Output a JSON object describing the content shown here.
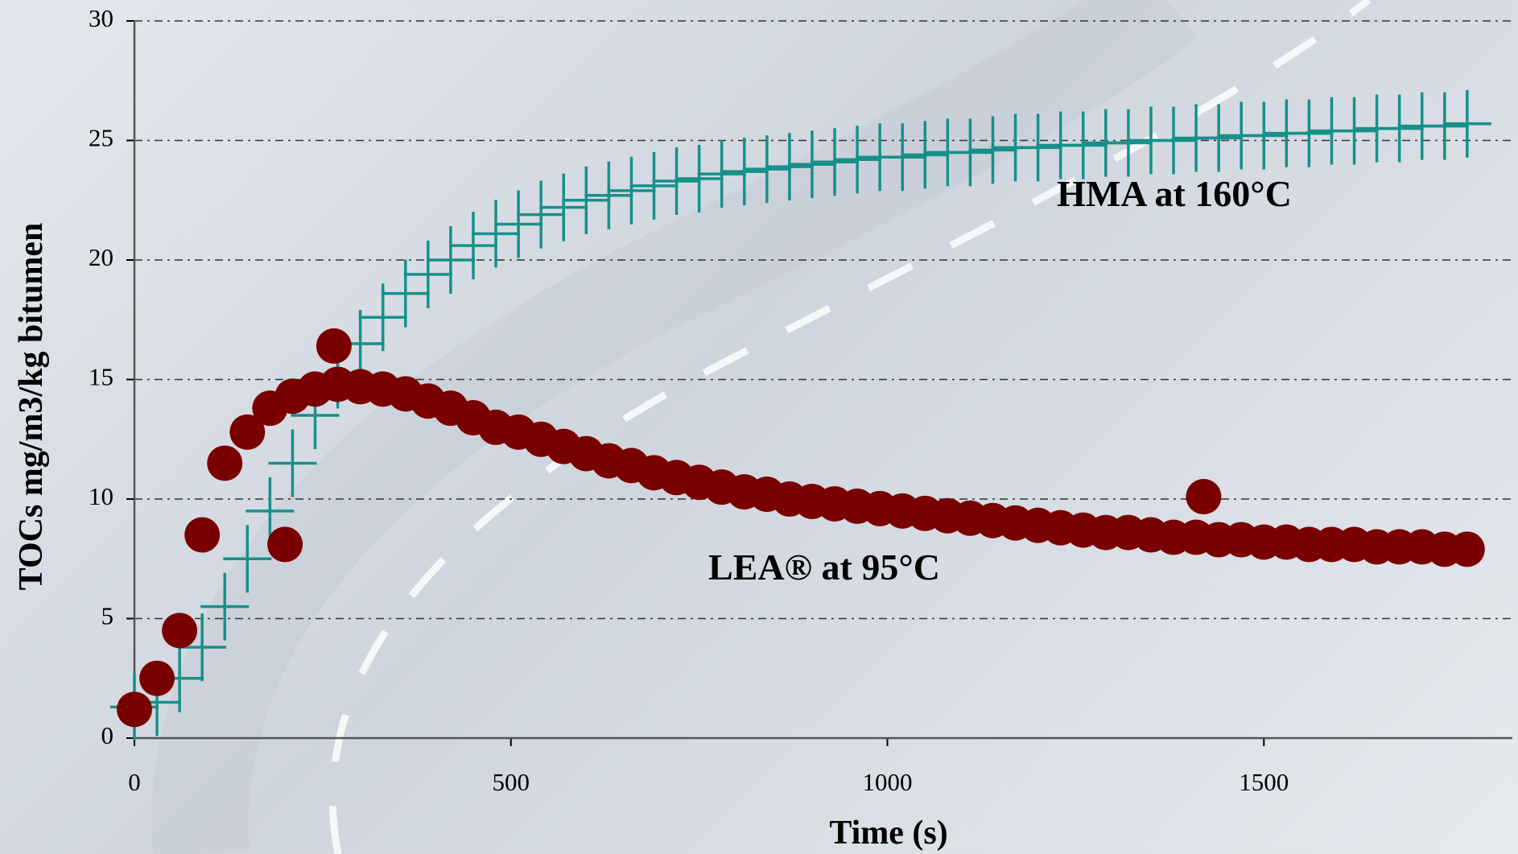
{
  "chart_data": {
    "type": "scatter",
    "x_label": "Time (s)",
    "y_label": "TOCs mg/m3/kg bitumen",
    "annotations": [
      "HMA at 160°C",
      "LEA® at 95°C"
    ],
    "xlim": [
      0,
      1830
    ],
    "xticks": [
      0,
      500,
      {
        "value": 1000,
        "label": "1000"
      },
      1500
    ],
    "ylim": [
      0,
      30
    ],
    "yticks": [
      0,
      5,
      10,
      15,
      20,
      25,
      30
    ],
    "grid": true,
    "series": [
      {
        "name": "HMA at 160°C",
        "color": "#16908a",
        "marker": "plus",
        "x": [
          0,
          30,
          60,
          90,
          120,
          150,
          180,
          210,
          240,
          270,
          300,
          330,
          360,
          390,
          420,
          450,
          480,
          510,
          540,
          570,
          600,
          630,
          660,
          690,
          720,
          750,
          780,
          810,
          840,
          870,
          900,
          930,
          960,
          990,
          1020,
          1050,
          1080,
          1110,
          1140,
          1170,
          1200,
          1230,
          1260,
          1290,
          1320,
          1350,
          1380,
          1410,
          1440,
          1470,
          1500,
          1530,
          1560,
          1590,
          1620,
          1650,
          1680,
          1710,
          1740,
          1770
        ],
        "values": [
          1.3,
          1.5,
          2.5,
          3.8,
          5.5,
          7.5,
          9.5,
          11.5,
          13.5,
          15.2,
          16.5,
          17.6,
          18.6,
          19.4,
          20.0,
          20.6,
          21.1,
          21.5,
          21.9,
          22.2,
          22.5,
          22.7,
          22.9,
          23.1,
          23.3,
          23.4,
          23.6,
          23.7,
          23.8,
          23.9,
          24.0,
          24.1,
          24.2,
          24.3,
          24.3,
          24.4,
          24.5,
          24.5,
          24.6,
          24.7,
          24.7,
          24.8,
          24.8,
          24.9,
          24.9,
          25.0,
          25.0,
          25.1,
          25.1,
          25.2,
          25.2,
          25.3,
          25.3,
          25.4,
          25.4,
          25.5,
          25.5,
          25.6,
          25.6,
          25.7
        ]
      },
      {
        "name": "LEA® at 95°C",
        "color": "#7a0000",
        "marker": "circle",
        "x": [
          0,
          30,
          60,
          90,
          120,
          150,
          180,
          210,
          240,
          270,
          300,
          330,
          360,
          390,
          420,
          450,
          480,
          510,
          540,
          570,
          600,
          630,
          660,
          690,
          720,
          750,
          780,
          810,
          840,
          870,
          900,
          930,
          960,
          990,
          1020,
          1050,
          1080,
          1110,
          1140,
          1170,
          1200,
          1230,
          1260,
          1290,
          1320,
          1350,
          1380,
          1410,
          1440,
          1470,
          1500,
          1530,
          1560,
          1590,
          1620,
          1650,
          1680,
          1710,
          1740,
          1770,
          200,
          265,
          1420
        ],
        "values": [
          1.2,
          2.5,
          4.5,
          8.5,
          11.5,
          12.8,
          13.8,
          14.3,
          14.6,
          14.8,
          14.7,
          14.6,
          14.4,
          14.1,
          13.8,
          13.4,
          13.0,
          12.8,
          12.5,
          12.2,
          11.9,
          11.6,
          11.4,
          11.1,
          10.9,
          10.7,
          10.5,
          10.3,
          10.2,
          10.0,
          9.9,
          9.8,
          9.7,
          9.6,
          9.5,
          9.4,
          9.3,
          9.2,
          9.1,
          9.0,
          8.9,
          8.8,
          8.7,
          8.6,
          8.6,
          8.5,
          8.4,
          8.4,
          8.3,
          8.3,
          8.2,
          8.2,
          8.1,
          8.1,
          8.1,
          8.0,
          8.0,
          8.0,
          7.9,
          7.9,
          8.1,
          16.4,
          10.1
        ]
      }
    ]
  }
}
